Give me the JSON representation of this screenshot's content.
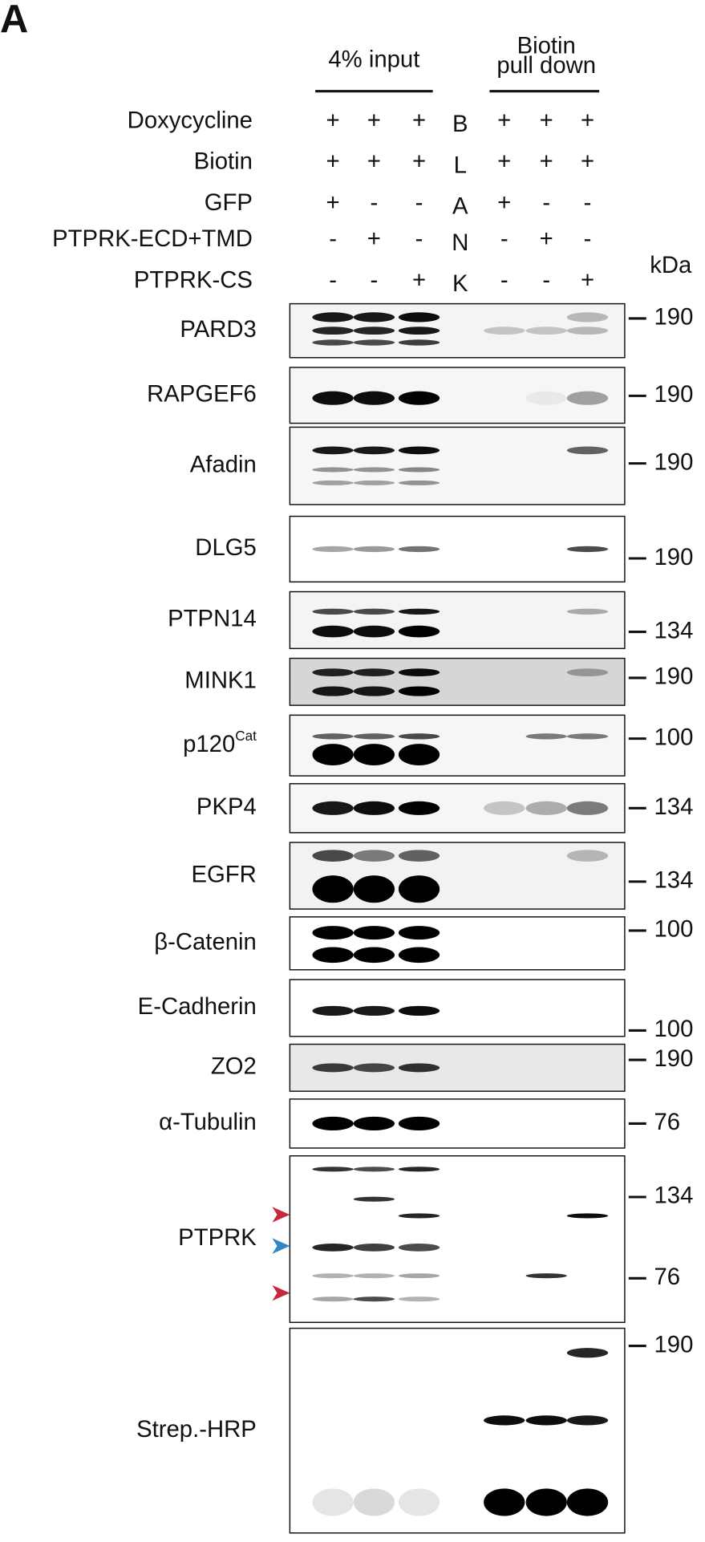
{
  "panel_label": "A",
  "groups": [
    {
      "label_lines": [
        "4% input"
      ]
    },
    {
      "label_lines": [
        "Biotin",
        "pull down"
      ]
    }
  ],
  "conditions": [
    {
      "label": "Doxycycline",
      "input": [
        "+",
        "+",
        "+"
      ],
      "pulldown": [
        "+",
        "+",
        "+"
      ]
    },
    {
      "label": "Biotin",
      "input": [
        "+",
        "+",
        "+"
      ],
      "pulldown": [
        "+",
        "+",
        "+"
      ]
    },
    {
      "label": "GFP",
      "input": [
        "+",
        "-",
        "-"
      ],
      "pulldown": [
        "+",
        "-",
        "-"
      ]
    },
    {
      "label": "PTPRK-ECD+TMD",
      "input": [
        "-",
        "+",
        "-"
      ],
      "pulldown": [
        "-",
        "+",
        "-"
      ]
    },
    {
      "label": "PTPRK-CS",
      "input": [
        "-",
        "-",
        "+"
      ],
      "pulldown": [
        "-",
        "-",
        "+"
      ]
    }
  ],
  "blank_letters": [
    "B",
    "L",
    "A",
    "N",
    "K"
  ],
  "kda_label": "kDa",
  "blots": [
    {
      "name": "PARD3",
      "markers": [
        190
      ]
    },
    {
      "name": "RAPGEF6",
      "markers": [
        190
      ]
    },
    {
      "name": "Afadin",
      "markers": [
        190
      ]
    },
    {
      "name": "DLG5",
      "markers": [
        190
      ]
    },
    {
      "name": "PTPN14",
      "markers": [
        134
      ]
    },
    {
      "name": "MINK1",
      "markers": [
        190
      ]
    },
    {
      "name": "p120",
      "superscript": "Cat",
      "markers": [
        100
      ]
    },
    {
      "name": "PKP4",
      "markers": [
        134
      ]
    },
    {
      "name": "EGFR",
      "markers": [
        134
      ]
    },
    {
      "name": "β-Catenin",
      "markers": [
        100
      ]
    },
    {
      "name": "E-Cadherin",
      "markers": [
        100
      ]
    },
    {
      "name": "ZO2",
      "markers": [
        190
      ]
    },
    {
      "name": "α-Tubulin",
      "markers": [
        76
      ]
    },
    {
      "name": "PTPRK",
      "markers": [
        134,
        76
      ]
    },
    {
      "name": "Strep.-HRP",
      "markers": [
        190
      ]
    }
  ]
}
